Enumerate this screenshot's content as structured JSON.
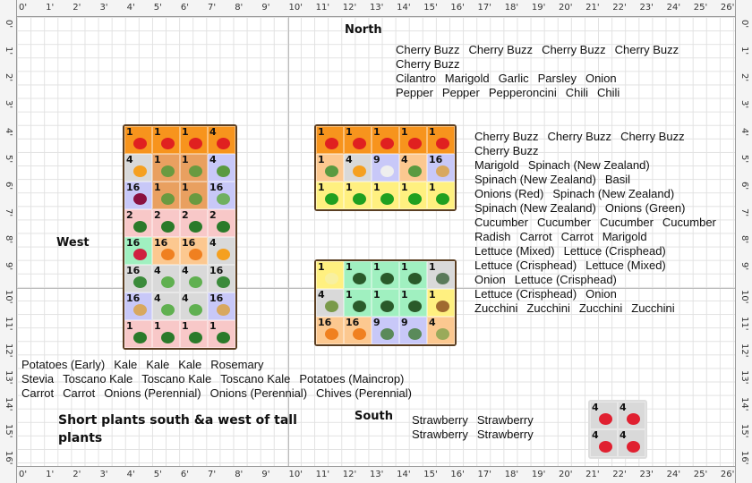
{
  "compass": {
    "north": "North",
    "south": "South",
    "west": "West"
  },
  "note": "Short plants south &a west of tall plants",
  "ruler": {
    "x_labels": [
      "0'",
      "1'",
      "2'",
      "3'",
      "4'",
      "5'",
      "6'",
      "7'",
      "8'",
      "9'",
      "10'",
      "11'",
      "12'",
      "13'",
      "14'",
      "15'",
      "16'",
      "17'",
      "18'",
      "19'",
      "20'",
      "21'",
      "22'",
      "23'",
      "24'",
      "25'",
      "26'"
    ],
    "y_labels": [
      "0'",
      "1'",
      "2'",
      "3'",
      "4'",
      "5'",
      "6'",
      "7'",
      "8'",
      "9'",
      "10'",
      "11'",
      "12'",
      "13'",
      "14'",
      "15'",
      "16'"
    ]
  },
  "plants": {
    "Cherry Buzz": {
      "bg": "#f7941d",
      "icon": "#e02020"
    },
    "Marigold": {
      "bg": "#d9d9d9",
      "icon": "#f5a020"
    },
    "Spinach (New Zealand)": {
      "bg": "#e9a060",
      "icon": "#6a9a40"
    },
    "Basil": {
      "bg": "#c8c8f8",
      "icon": "#5a9a40"
    },
    "Onions (Red)": {
      "bg": "#c8c8f8",
      "icon": "#8a1040"
    },
    "Onions (Green)": {
      "bg": "#c8c8f8",
      "icon": "#70b060"
    },
    "Cucumber": {
      "bg": "#f8c8c8",
      "icon": "#2a7a2a"
    },
    "Radish": {
      "bg": "#a0f0c0",
      "icon": "#d02040"
    },
    "Carrot": {
      "bg": "#fcc890",
      "icon": "#f08020"
    },
    "Lettuce (Mixed)": {
      "bg": "#d9d9d9",
      "icon": "#3a8a3a"
    },
    "Lettuce (Crisphead)": {
      "bg": "#d9d9d9",
      "icon": "#60b050"
    },
    "Onion": {
      "bg": "#c8c8f8",
      "icon": "#d8a860"
    },
    "Zucchini": {
      "bg": "#f8c8c8",
      "icon": "#2a7a2a"
    },
    "Cilantro": {
      "bg": "#fcc890",
      "icon": "#5a9a40"
    },
    "Garlic": {
      "bg": "#c8c8f8",
      "icon": "#eeeeee"
    },
    "Parsley": {
      "bg": "#fcc890",
      "icon": "#5a9a40"
    },
    "Pepper": {
      "bg": "#fff080",
      "icon": "#20a020"
    },
    "Pepperoncini": {
      "bg": "#fff080",
      "icon": "#20a020"
    },
    "Chili": {
      "bg": "#fff080",
      "icon": "#20a020"
    },
    "Potatoes (Early)": {
      "bg": "#fff080",
      "icon": "#f8f0a0"
    },
    "Kale": {
      "bg": "#a0f0c0",
      "icon": "#2a5a2a"
    },
    "Rosemary": {
      "bg": "#d9d9d9",
      "icon": "#5a7a5a"
    },
    "Stevia": {
      "bg": "#d9d9d9",
      "icon": "#7a9a4a"
    },
    "Toscano Kale": {
      "bg": "#a0f0c0",
      "icon": "#2a5a2a"
    },
    "Potatoes (Maincrop)": {
      "bg": "#fff080",
      "icon": "#a06a30"
    },
    "Onions (Perennial)": {
      "bg": "#c8c8f8",
      "icon": "#5a8a5a"
    },
    "Chives (Perennial)": {
      "bg": "#fcc890",
      "icon": "#9aaa5a"
    },
    "Strawberry": {
      "bg": "#d9d9d9",
      "icon": "#e02030"
    }
  },
  "beds": [
    {
      "rows": [
        [
          [
            1,
            "Cherry Buzz"
          ],
          [
            1,
            "Cherry Buzz"
          ],
          [
            1,
            "Cherry Buzz"
          ],
          [
            4,
            "Cherry Buzz"
          ]
        ],
        [
          [
            4,
            "Marigold"
          ],
          [
            1,
            "Spinach (New Zealand)"
          ],
          [
            1,
            "Spinach (New Zealand)"
          ],
          [
            4,
            "Basil"
          ]
        ],
        [
          [
            16,
            "Onions (Red)"
          ],
          [
            1,
            "Spinach (New Zealand)"
          ],
          [
            1,
            "Spinach (New Zealand)"
          ],
          [
            16,
            "Onions (Green)"
          ]
        ],
        [
          [
            2,
            "Cucumber"
          ],
          [
            2,
            "Cucumber"
          ],
          [
            2,
            "Cucumber"
          ],
          [
            2,
            "Cucumber"
          ]
        ],
        [
          [
            16,
            "Radish"
          ],
          [
            16,
            "Carrot"
          ],
          [
            16,
            "Carrot"
          ],
          [
            4,
            "Marigold"
          ]
        ],
        [
          [
            16,
            "Lettuce (Mixed)"
          ],
          [
            4,
            "Lettuce (Crisphead)"
          ],
          [
            4,
            "Lettuce (Crisphead)"
          ],
          [
            16,
            "Lettuce (Mixed)"
          ]
        ],
        [
          [
            16,
            "Onion"
          ],
          [
            4,
            "Lettuce (Crisphead)"
          ],
          [
            4,
            "Lettuce (Crisphead)"
          ],
          [
            16,
            "Onion"
          ]
        ],
        [
          [
            1,
            "Zucchini"
          ],
          [
            1,
            "Zucchini"
          ],
          [
            1,
            "Zucchini"
          ],
          [
            1,
            "Zucchini"
          ]
        ]
      ]
    },
    {
      "rows": [
        [
          [
            1,
            "Cherry Buzz"
          ],
          [
            1,
            "Cherry Buzz"
          ],
          [
            1,
            "Cherry Buzz"
          ],
          [
            1,
            "Cherry Buzz"
          ],
          [
            1,
            "Cherry Buzz"
          ]
        ],
        [
          [
            1,
            "Cilantro"
          ],
          [
            4,
            "Marigold"
          ],
          [
            9,
            "Garlic"
          ],
          [
            4,
            "Parsley"
          ],
          [
            16,
            "Onion"
          ]
        ],
        [
          [
            1,
            "Pepper"
          ],
          [
            1,
            "Pepper"
          ],
          [
            1,
            "Pepperoncini"
          ],
          [
            1,
            "Chili"
          ],
          [
            1,
            "Chili"
          ]
        ]
      ]
    },
    {
      "rows": [
        [
          [
            1,
            "Potatoes (Early)"
          ],
          [
            1,
            "Kale"
          ],
          [
            1,
            "Kale"
          ],
          [
            1,
            "Kale"
          ],
          [
            1,
            "Rosemary"
          ]
        ],
        [
          [
            4,
            "Stevia"
          ],
          [
            1,
            "Toscano Kale"
          ],
          [
            1,
            "Toscano Kale"
          ],
          [
            1,
            "Toscano Kale"
          ],
          [
            1,
            "Potatoes (Maincrop)"
          ]
        ],
        [
          [
            16,
            "Carrot"
          ],
          [
            16,
            "Carrot"
          ],
          [
            9,
            "Onions (Perennial)"
          ],
          [
            9,
            "Onions (Perennial)"
          ],
          [
            4,
            "Chives (Perennial)"
          ]
        ]
      ]
    },
    {
      "rows": [
        [
          [
            4,
            "Strawberry"
          ],
          [
            4,
            "Strawberry"
          ]
        ],
        [
          [
            4,
            "Strawberry"
          ],
          [
            4,
            "Strawberry"
          ]
        ]
      ]
    }
  ]
}
